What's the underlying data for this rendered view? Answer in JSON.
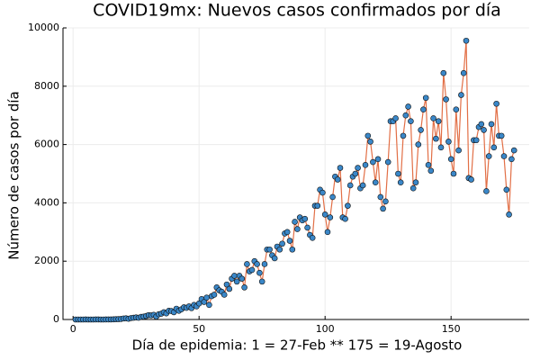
{
  "chart_data": {
    "type": "line",
    "title": "COVID19mx: Nuevos casos confirmados por día",
    "xlabel": "Día de epidemia: 1 = 27-Feb ** 175 = 19-Agosto",
    "ylabel": "Número de casos por día",
    "x": [
      1,
      2,
      3,
      4,
      5,
      6,
      7,
      8,
      9,
      10,
      11,
      12,
      13,
      14,
      15,
      16,
      17,
      18,
      19,
      20,
      21,
      22,
      23,
      24,
      25,
      26,
      27,
      28,
      29,
      30,
      31,
      32,
      33,
      34,
      35,
      36,
      37,
      38,
      39,
      40,
      41,
      42,
      43,
      44,
      45,
      46,
      47,
      48,
      49,
      50,
      51,
      52,
      53,
      54,
      55,
      56,
      57,
      58,
      59,
      60,
      61,
      62,
      63,
      64,
      65,
      66,
      67,
      68,
      69,
      70,
      71,
      72,
      73,
      74,
      75,
      76,
      77,
      78,
      79,
      80,
      81,
      82,
      83,
      84,
      85,
      86,
      87,
      88,
      89,
      90,
      91,
      92,
      93,
      94,
      95,
      96,
      97,
      98,
      99,
      100,
      101,
      102,
      103,
      104,
      105,
      106,
      107,
      108,
      109,
      110,
      111,
      112,
      113,
      114,
      115,
      116,
      117,
      118,
      119,
      120,
      121,
      122,
      123,
      124,
      125,
      126,
      127,
      128,
      129,
      130,
      131,
      132,
      133,
      134,
      135,
      136,
      137,
      138,
      139,
      140,
      141,
      142,
      143,
      144,
      145,
      146,
      147,
      148,
      149,
      150,
      151,
      152,
      153,
      154,
      155,
      156,
      157,
      158,
      159,
      160,
      161,
      162,
      163,
      164,
      165,
      166,
      167,
      168,
      169,
      170,
      171,
      172,
      173,
      174,
      175
    ],
    "series": [
      {
        "line_color": "#e26f46",
        "marker_color": "#3a87c8",
        "values": [
          0,
          0,
          0,
          0,
          1,
          0,
          0,
          0,
          1,
          1,
          0,
          0,
          2,
          2,
          3,
          5,
          10,
          12,
          18,
          35,
          40,
          25,
          50,
          60,
          70,
          60,
          90,
          100,
          120,
          150,
          140,
          160,
          100,
          180,
          200,
          250,
          210,
          300,
          290,
          250,
          370,
          300,
          350,
          420,
          400,
          450,
          390,
          500,
          450,
          550,
          700,
          600,
          750,
          500,
          800,
          850,
          1100,
          1000,
          950,
          850,
          1200,
          1050,
          1400,
          1500,
          1300,
          1500,
          1400,
          1100,
          1900,
          1650,
          1700,
          2000,
          1900,
          1600,
          1300,
          1900,
          2400,
          2400,
          2200,
          2100,
          2500,
          2400,
          2600,
          2950,
          3000,
          2700,
          2400,
          3350,
          3100,
          3500,
          3400,
          3450,
          3150,
          2900,
          2800,
          3900,
          3900,
          4450,
          4350,
          3600,
          3000,
          3500,
          4200,
          4900,
          4800,
          5200,
          3500,
          3450,
          3900,
          4600,
          4900,
          5000,
          5200,
          4500,
          4600,
          5300,
          6300,
          6100,
          5400,
          4700,
          5500,
          4200,
          3800,
          4050,
          5400,
          6800,
          6800,
          6900,
          5000,
          4700,
          6300,
          7000,
          7300,
          6800,
          4500,
          4700,
          6000,
          6500,
          7200,
          7600,
          5300,
          5100,
          6900,
          6200,
          6800,
          5900,
          8450,
          7550,
          6100,
          5500,
          5000,
          7200,
          5800,
          7700,
          8450,
          9560,
          4850,
          4800,
          6150,
          6150,
          6600,
          6700,
          6500,
          4400,
          5600,
          6700,
          5900,
          7400,
          6300,
          6300,
          5600,
          4450,
          3600,
          5500,
          5800
        ]
      }
    ],
    "xlim": [
      -4,
      181
    ],
    "ylim": [
      0,
      10000
    ],
    "xticks": [
      0,
      50,
      100,
      150
    ],
    "yticks": [
      0,
      2000,
      4000,
      6000,
      8000,
      10000
    ],
    "grid": true
  }
}
